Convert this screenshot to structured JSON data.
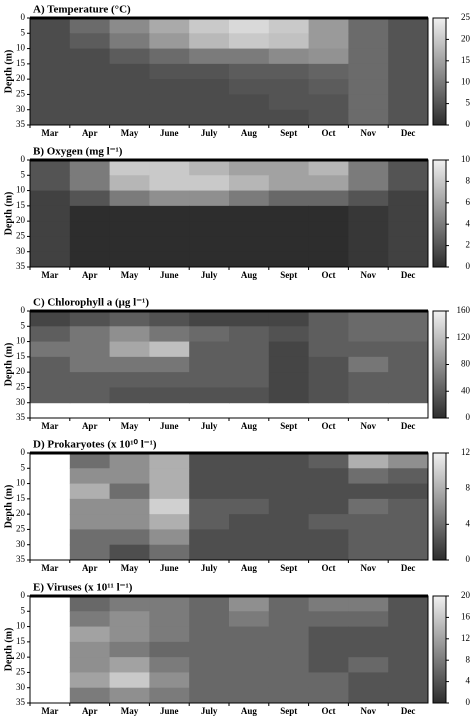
{
  "chart_data": [
    {
      "type": "contour",
      "title": "A) Temperature (°C)",
      "y_label": "Depth (m)",
      "categories": [
        "Mar",
        "Apr",
        "May",
        "June",
        "July",
        "Aug",
        "Sept",
        "Oct",
        "Nov",
        "Dec"
      ],
      "ylim": [
        0,
        35
      ],
      "yticks": [
        0,
        5,
        10,
        15,
        20,
        25,
        30,
        35
      ],
      "clim": [
        0,
        25
      ],
      "cticks": [
        0,
        5,
        10,
        15,
        20,
        25
      ],
      "values": [
        [
          4,
          8,
          12,
          16,
          20,
          22,
          20,
          14,
          8,
          5
        ],
        [
          4,
          6,
          10,
          14,
          18,
          20,
          19,
          14,
          8,
          5
        ],
        [
          4,
          4,
          6,
          8,
          10,
          10,
          12,
          13,
          8,
          5
        ],
        [
          4,
          4,
          4,
          5,
          5,
          6,
          6,
          7,
          8,
          5
        ],
        [
          4,
          4,
          4,
          4,
          4,
          5,
          5,
          6,
          8,
          5
        ],
        [
          4,
          4,
          4,
          4,
          4,
          4,
          5,
          5,
          8,
          5
        ],
        [
          4,
          4,
          4,
          4,
          4,
          4,
          4,
          5,
          8,
          5
        ]
      ]
    },
    {
      "type": "contour",
      "title": "B) Oxygen (mg l⁻¹)",
      "y_label": "Depth (m)",
      "categories": [
        "Mar",
        "Apr",
        "May",
        "June",
        "July",
        "Aug",
        "Sept",
        "Oct",
        "Nov",
        "Dec"
      ],
      "ylim": [
        0,
        35
      ],
      "yticks": [
        0,
        5,
        10,
        15,
        20,
        25,
        30,
        35
      ],
      "clim": [
        0,
        10
      ],
      "cticks": [
        0,
        2,
        4,
        6,
        8,
        10
      ],
      "values": [
        [
          2,
          4,
          8,
          8,
          7,
          6,
          6,
          7,
          4,
          2
        ],
        [
          2,
          4,
          7,
          8,
          8,
          7,
          6,
          6,
          4,
          2
        ],
        [
          1,
          2,
          4,
          5,
          5,
          4,
          3,
          3,
          2,
          1
        ],
        [
          1,
          0,
          0,
          0,
          0,
          0,
          0,
          0,
          0.5,
          1
        ],
        [
          1,
          0,
          0,
          0,
          0,
          0,
          0,
          0,
          0.5,
          1
        ],
        [
          1,
          0,
          0,
          0,
          0,
          0,
          0,
          0,
          0.5,
          1
        ],
        [
          1,
          0,
          0,
          0,
          0,
          0,
          0,
          0,
          0.5,
          1
        ]
      ]
    },
    {
      "type": "contour",
      "title": "C) Chlorophyll a (μg l⁻¹)",
      "y_label": "Depth (m)",
      "categories": [
        "Mar",
        "Apr",
        "May",
        "June",
        "July",
        "Aug",
        "Sept",
        "Oct",
        "Nov",
        "Dec"
      ],
      "ylim": [
        0,
        35
      ],
      "yticks": [
        0,
        5,
        10,
        15,
        20,
        25,
        30,
        35
      ],
      "clim": [
        0,
        160
      ],
      "cticks": [
        0,
        40,
        80,
        120,
        160
      ],
      "values": [
        [
          20,
          30,
          40,
          30,
          20,
          20,
          20,
          40,
          50,
          50
        ],
        [
          40,
          60,
          80,
          60,
          50,
          40,
          30,
          40,
          50,
          50
        ],
        [
          60,
          60,
          100,
          120,
          40,
          40,
          20,
          40,
          40,
          40
        ],
        [
          40,
          60,
          60,
          60,
          40,
          40,
          20,
          30,
          60,
          40
        ],
        [
          40,
          40,
          40,
          40,
          40,
          40,
          20,
          30,
          40,
          40
        ],
        [
          40,
          40,
          30,
          30,
          30,
          30,
          20,
          30,
          40,
          40
        ],
        [
          null,
          null,
          null,
          null,
          null,
          null,
          null,
          null,
          null,
          null
        ]
      ]
    },
    {
      "type": "contour",
      "title": "D) Prokaryotes (x 10¹⁰ l⁻¹)",
      "y_label": "Depth (m)",
      "categories": [
        "Mar",
        "Apr",
        "May",
        "June",
        "July",
        "Aug",
        "Sept",
        "Oct",
        "Nov",
        "Dec"
      ],
      "ylim": [
        0,
        35
      ],
      "yticks": [
        0,
        5,
        10,
        15,
        20,
        25,
        30,
        35
      ],
      "clim": [
        0,
        12
      ],
      "cticks": [
        0,
        4,
        8,
        12
      ],
      "values": [
        [
          null,
          4,
          6,
          8,
          2,
          2,
          2,
          3,
          8,
          6
        ],
        [
          null,
          6,
          6,
          8,
          2,
          2,
          2,
          2,
          4,
          3
        ],
        [
          null,
          8,
          4,
          8,
          2,
          2,
          2,
          2,
          2,
          2
        ],
        [
          null,
          6,
          6,
          10,
          3,
          3,
          2,
          2,
          4,
          3
        ],
        [
          null,
          6,
          6,
          8,
          3,
          2,
          2,
          3,
          3,
          3
        ],
        [
          null,
          4,
          4,
          6,
          2,
          2,
          2,
          2,
          3,
          3
        ],
        [
          null,
          4,
          2,
          4,
          2,
          2,
          2,
          2,
          3,
          3
        ]
      ]
    },
    {
      "type": "contour",
      "title": "E) Viruses (x 10¹¹ l⁻¹)",
      "y_label": "Depth (m)",
      "categories": [
        "Mar",
        "Apr",
        "May",
        "June",
        "July",
        "Aug",
        "Sept",
        "Oct",
        "Nov",
        "Dec"
      ],
      "ylim": [
        0,
        35
      ],
      "yticks": [
        0,
        5,
        10,
        15,
        20,
        25,
        30,
        35
      ],
      "clim": [
        0,
        20
      ],
      "cticks": [
        0,
        4,
        8,
        12,
        16,
        20
      ],
      "values": [
        [
          null,
          6,
          8,
          8,
          6,
          10,
          6,
          8,
          8,
          4
        ],
        [
          null,
          8,
          10,
          8,
          6,
          8,
          6,
          6,
          6,
          4
        ],
        [
          null,
          12,
          10,
          8,
          6,
          6,
          6,
          4,
          4,
          4
        ],
        [
          null,
          10,
          8,
          6,
          6,
          6,
          6,
          4,
          4,
          4
        ],
        [
          null,
          10,
          12,
          8,
          6,
          6,
          6,
          4,
          6,
          4
        ],
        [
          null,
          12,
          16,
          10,
          6,
          6,
          6,
          6,
          4,
          4
        ],
        [
          null,
          8,
          10,
          8,
          6,
          6,
          6,
          6,
          4,
          4
        ]
      ]
    }
  ]
}
